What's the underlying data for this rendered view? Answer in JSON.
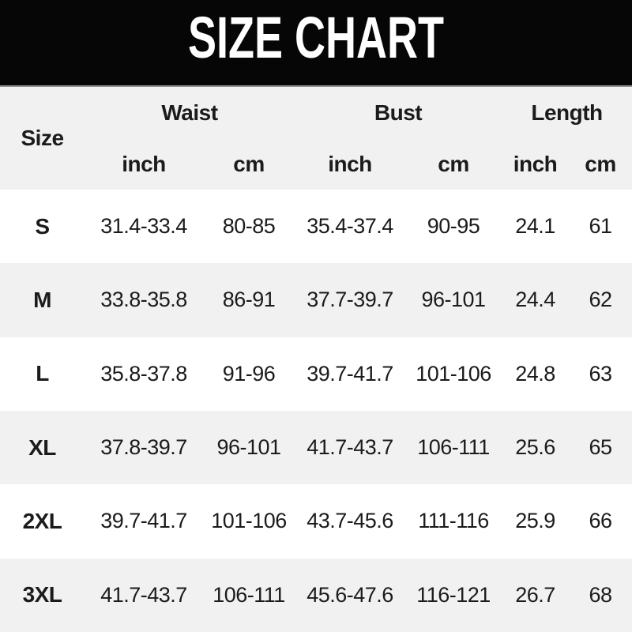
{
  "chart_data": {
    "type": "table",
    "title": "SIZE CHART",
    "size_column_label": "Size",
    "column_groups": [
      "Waist",
      "Bust",
      "Length"
    ],
    "unit_labels": [
      "inch",
      "cm",
      "inch",
      "cm",
      "inch",
      "cm"
    ],
    "columns": [
      "Size",
      "Waist inch",
      "Waist cm",
      "Bust inch",
      "Bust cm",
      "Length inch",
      "Length cm"
    ],
    "rows": [
      {
        "size": "S",
        "values": [
          "31.4-33.4",
          "80-85",
          "35.4-37.4",
          "90-95",
          "24.1",
          "61"
        ]
      },
      {
        "size": "M",
        "values": [
          "33.8-35.8",
          "86-91",
          "37.7-39.7",
          "96-101",
          "24.4",
          "62"
        ]
      },
      {
        "size": "L",
        "values": [
          "35.8-37.8",
          "91-96",
          "39.7-41.7",
          "101-106",
          "24.8",
          "63"
        ]
      },
      {
        "size": "XL",
        "values": [
          "37.8-39.7",
          "96-101",
          "41.7-43.7",
          "106-111",
          "25.6",
          "65"
        ]
      },
      {
        "size": "2XL",
        "values": [
          "39.7-41.7",
          "101-106",
          "43.7-45.6",
          "111-116",
          "25.9",
          "66"
        ]
      },
      {
        "size": "3XL",
        "values": [
          "41.7-43.7",
          "106-111",
          "45.6-47.6",
          "116-121",
          "26.7",
          "68"
        ]
      }
    ],
    "layout": {
      "row_striping": "white/gray alternating starting white at S",
      "header_background": "gray"
    }
  },
  "colors": {
    "banner_bg": "#060606",
    "banner_text": "#ffffff",
    "banner_separator": "#909090",
    "row_gray": "#f1f1f2",
    "row_white": "#ffffff",
    "text": "#1b1b1b"
  }
}
